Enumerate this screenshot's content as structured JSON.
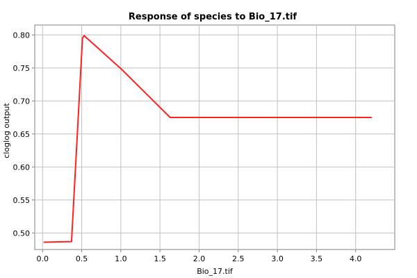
{
  "chart_data": {
    "type": "line",
    "title": "Response of species to Bio_17.tif",
    "xlabel": "Bio_17.tif",
    "ylabel": "cloglog output",
    "xlim": [
      -0.1,
      4.5
    ],
    "ylim": [
      0.475,
      0.815
    ],
    "xticks": [
      "0.0",
      "0.5",
      "1.0",
      "1.5",
      "2.0",
      "2.5",
      "3.0",
      "3.5",
      "4.0"
    ],
    "yticks": [
      "0.50",
      "0.55",
      "0.60",
      "0.65",
      "0.70",
      "0.75",
      "0.80"
    ],
    "grid": true,
    "series": [
      {
        "color": "#ff2020",
        "x": [
          0.02,
          0.37,
          0.51,
          0.53,
          1.0,
          1.63,
          4.2
        ],
        "y": [
          0.486,
          0.487,
          0.795,
          0.799,
          0.749,
          0.675,
          0.675
        ]
      }
    ]
  }
}
